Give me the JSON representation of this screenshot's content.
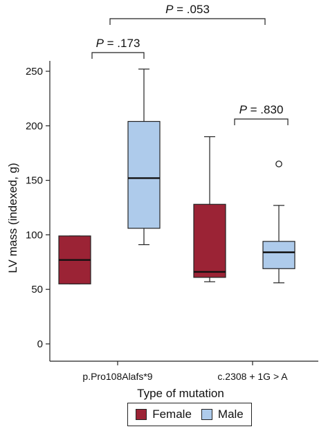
{
  "chart_data": {
    "type": "boxplot",
    "ylabel": "LV mass (indexed, g)",
    "xlabel": "Type of mutation",
    "ylim": [
      0,
      260
    ],
    "yticks": [
      0,
      50,
      100,
      150,
      200,
      250
    ],
    "categories": [
      "p.Pro108Alafs*9",
      "c.2308 + 1G > A"
    ],
    "series": [
      {
        "name": "Female",
        "color": "#9b2335",
        "boxes": [
          {
            "category": "p.Pro108Alafs*9",
            "min": 55,
            "q1": 55,
            "median": 77,
            "q3": 99,
            "max": 99,
            "outliers": []
          },
          {
            "category": "c.2308 + 1G > A",
            "min": 57,
            "q1": 61,
            "median": 66,
            "q3": 128,
            "max": 190,
            "outliers": []
          }
        ]
      },
      {
        "name": "Male",
        "color": "#aecbeb",
        "boxes": [
          {
            "category": "p.Pro108Alafs*9",
            "min": 91,
            "q1": 106,
            "median": 152,
            "q3": 204,
            "max": 252,
            "outliers": []
          },
          {
            "category": "c.2308 + 1G > A",
            "min": 56,
            "q1": 69,
            "median": 84,
            "q3": 94,
            "max": 127,
            "outliers": [
              165
            ]
          }
        ]
      }
    ],
    "annotations": [
      {
        "text_prefix": "P",
        "text_value": " = .053",
        "from": "p.Pro108Alafs*9",
        "to": "c.2308 + 1G > A",
        "kind": "between-categories"
      },
      {
        "text_prefix": "P",
        "text_value": " = .173",
        "from": "Female",
        "to": "Male",
        "category": "p.Pro108Alafs*9",
        "kind": "within-category"
      },
      {
        "text_prefix": "P",
        "text_value": " = .830",
        "from": "Female",
        "to": "Male",
        "category": "c.2308 + 1G > A",
        "kind": "within-category"
      }
    ],
    "legend_position": "bottom-center"
  }
}
